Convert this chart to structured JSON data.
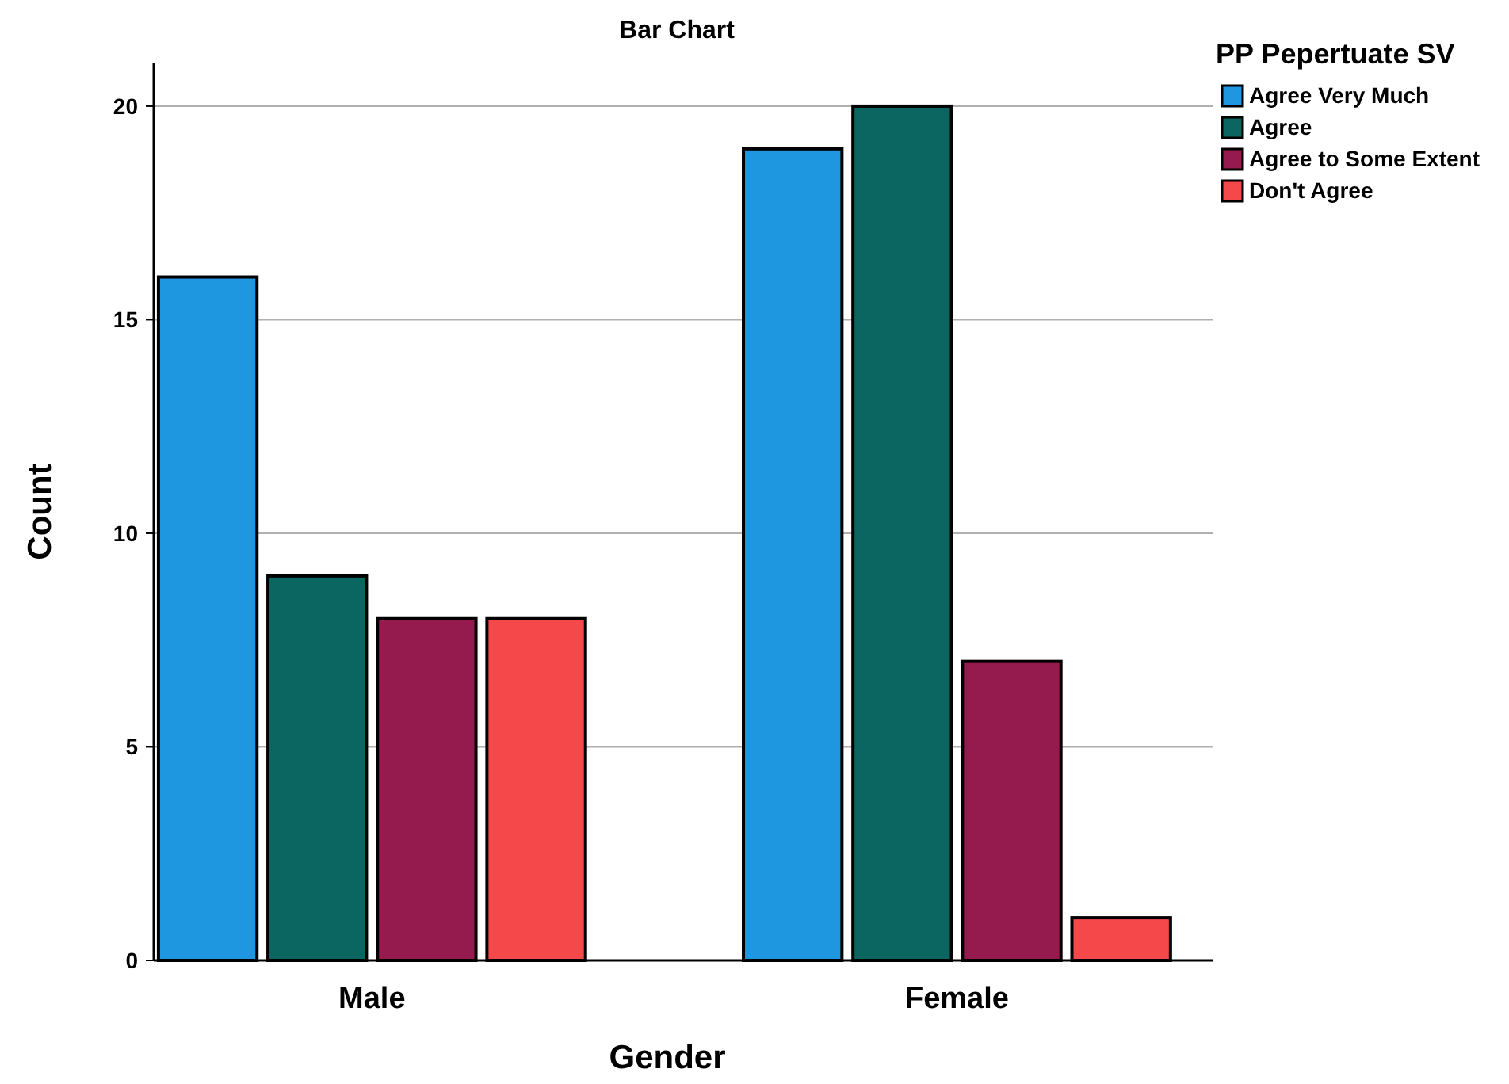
{
  "chart_data": {
    "type": "bar",
    "title": "Bar Chart",
    "xlabel": "Gender",
    "ylabel": "Count",
    "legend_title": "PP Pepertuate SV",
    "categories": [
      "Male",
      "Female"
    ],
    "series": [
      {
        "name": "Agree Very Much",
        "color": "#1f97e0",
        "values": [
          16,
          19
        ]
      },
      {
        "name": "Agree",
        "color": "#0b6661",
        "values": [
          9,
          20
        ]
      },
      {
        "name": "Agree to Some Extent",
        "color": "#951b4e",
        "values": [
          8,
          7
        ]
      },
      {
        "name": "Don't Agree",
        "color": "#f5484a",
        "values": [
          8,
          1
        ]
      }
    ],
    "ylim": [
      0,
      21
    ],
    "yticks": [
      0,
      5,
      10,
      15,
      20
    ],
    "grid": "y",
    "legend": "top right"
  }
}
